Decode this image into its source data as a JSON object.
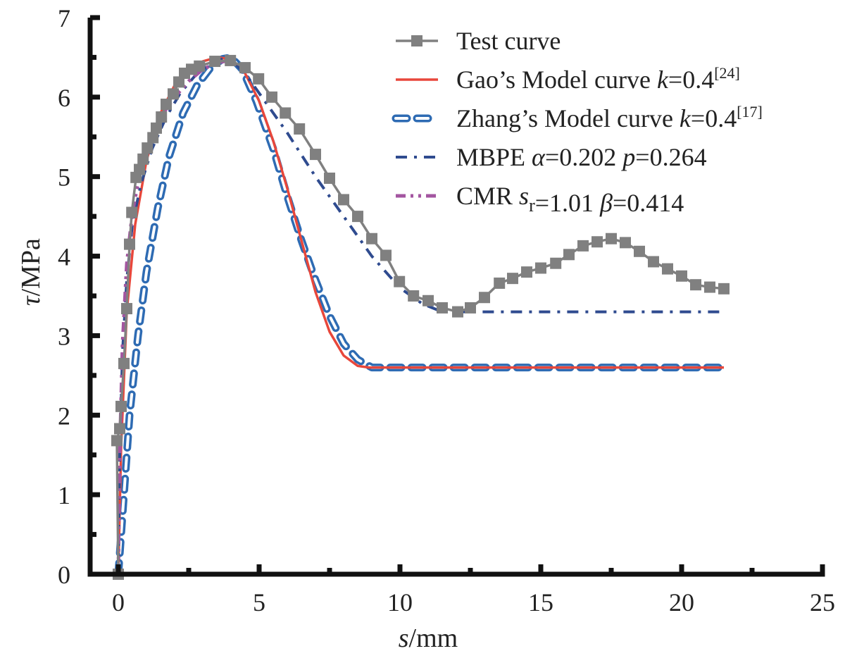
{
  "chart_data": {
    "type": "line",
    "title": "",
    "xlabel": {
      "var": "s",
      "unit": "/mm"
    },
    "ylabel": {
      "var": "τ",
      "unit": "/MPa"
    },
    "xlim": [
      -1,
      25
    ],
    "ylim": [
      0,
      7
    ],
    "xticks": [
      0,
      5,
      10,
      15,
      20,
      25
    ],
    "yticks": [
      0,
      1,
      2,
      3,
      4,
      5,
      6,
      7
    ],
    "xtick_labels": [
      "0",
      "5",
      "10",
      "15",
      "20",
      "25"
    ],
    "ytick_labels": [
      "0",
      "1",
      "2",
      "3",
      "4",
      "5",
      "6",
      "7"
    ],
    "grid": false,
    "legend_position": "top-right",
    "series": [
      {
        "name": "Test curve",
        "legend": [
          {
            "t": "Test curve"
          }
        ],
        "color": "#808080",
        "style": "line-square-markers",
        "x": [
          0,
          -0.05,
          0.05,
          0.1,
          0.2,
          0.3,
          0.4,
          0.48,
          0.63,
          0.75,
          0.88,
          1.03,
          1.23,
          1.35,
          1.53,
          1.7,
          1.95,
          2.15,
          2.35,
          2.6,
          2.88,
          3.43,
          3.98,
          4.5,
          4.98,
          5.45,
          5.93,
          6.43,
          7.0,
          7.5,
          8.0,
          8.5,
          9.0,
          9.5,
          9.98,
          10.48,
          11.0,
          11.5,
          12.05,
          12.5,
          13.0,
          13.53,
          14.0,
          14.5,
          15.0,
          15.53,
          16.0,
          16.5,
          17.0,
          17.5,
          18.0,
          18.5,
          19.0,
          19.5,
          20.0,
          20.5,
          21.0,
          21.5
        ],
        "y": [
          0,
          1.68,
          1.83,
          2.11,
          2.65,
          3.34,
          4.15,
          4.55,
          4.99,
          5.09,
          5.22,
          5.36,
          5.49,
          5.61,
          5.75,
          5.91,
          6.04,
          6.19,
          6.3,
          6.35,
          6.39,
          6.45,
          6.46,
          6.37,
          6.23,
          6.0,
          5.8,
          5.6,
          5.28,
          4.98,
          4.71,
          4.5,
          4.22,
          4.01,
          3.68,
          3.5,
          3.44,
          3.35,
          3.3,
          3.35,
          3.48,
          3.66,
          3.72,
          3.8,
          3.85,
          3.91,
          4.02,
          4.13,
          4.18,
          4.22,
          4.17,
          4.06,
          3.93,
          3.84,
          3.75,
          3.64,
          3.61,
          3.59
        ]
      },
      {
        "name": "Gao's Model curve k=0.4[24]",
        "legend": [
          {
            "t": "Gao’s Model curve "
          },
          {
            "t": "k",
            "i": true
          },
          {
            "t": "=0.4"
          },
          {
            "t": "[24]",
            "sup": true
          }
        ],
        "color": "#e8473b",
        "style": "solid",
        "x": [
          0,
          0.1,
          0.3,
          0.6,
          1.0,
          1.5,
          2.0,
          2.5,
          3.0,
          3.5,
          4.0,
          4.5,
          5.0,
          5.5,
          6.0,
          6.5,
          7.0,
          7.5,
          8.0,
          8.5,
          8.9,
          9.5,
          12,
          15,
          18,
          21.5
        ],
        "y": [
          0,
          1.6,
          3.3,
          4.4,
          5.2,
          5.8,
          6.15,
          6.35,
          6.45,
          6.5,
          6.48,
          6.3,
          5.95,
          5.45,
          4.85,
          4.2,
          3.55,
          3.05,
          2.75,
          2.62,
          2.6,
          2.6,
          2.6,
          2.6,
          2.6,
          2.6
        ]
      },
      {
        "name": "Zhang's Model curve k=0.4[17]",
        "legend": [
          {
            "t": "Zhang’s Model curve "
          },
          {
            "t": "k",
            "i": true
          },
          {
            "t": "=0.4"
          },
          {
            "t": "[17]",
            "sup": true
          }
        ],
        "color": "#2e6bb3",
        "style": "hollow-dash",
        "x": [
          0,
          0.2,
          0.4,
          0.7,
          1.0,
          1.4,
          1.8,
          2.3,
          2.8,
          3.3,
          3.7,
          4.0,
          4.4,
          4.9,
          5.5,
          6.0,
          6.5,
          7.0,
          7.5,
          8.0,
          8.5,
          9.0,
          9.5,
          12,
          15,
          18,
          21.5
        ],
        "y": [
          0,
          1.0,
          2.0,
          3.0,
          3.8,
          4.6,
          5.25,
          5.8,
          6.15,
          6.38,
          6.48,
          6.5,
          6.35,
          5.95,
          5.35,
          4.75,
          4.2,
          3.7,
          3.25,
          2.9,
          2.7,
          2.6,
          2.6,
          2.6,
          2.6,
          2.6,
          2.6
        ]
      },
      {
        "name": "MBPE α=0.202 p=0.264",
        "legend": [
          {
            "t": "MBPE "
          },
          {
            "t": "α",
            "i": true
          },
          {
            "t": "=0.202 "
          },
          {
            "t": "p",
            "i": true
          },
          {
            "t": "=0.264"
          }
        ],
        "color": "#2f4b8f",
        "style": "dash-dot",
        "x": [
          0,
          0.05,
          0.15,
          0.3,
          0.5,
          0.8,
          1.2,
          1.7,
          2.2,
          2.8,
          3.4,
          3.9,
          4.5,
          5.0,
          6.0,
          7.0,
          8.0,
          9.0,
          10.0,
          10.8,
          11.5,
          12.0,
          12.5,
          15,
          18,
          21.5
        ],
        "y": [
          0,
          1.5,
          2.8,
          3.7,
          4.4,
          4.9,
          5.35,
          5.75,
          6.05,
          6.3,
          6.45,
          6.5,
          6.3,
          6.05,
          5.55,
          5.0,
          4.5,
          4.0,
          3.6,
          3.4,
          3.3,
          3.3,
          3.3,
          3.3,
          3.3,
          3.3
        ]
      },
      {
        "name": "CMR sr=1.01 β=0.414",
        "legend": [
          {
            "t": "CMR "
          },
          {
            "t": "s",
            "i": true
          },
          {
            "t": "r",
            "sub": true
          },
          {
            "t": "=1.01 "
          },
          {
            "t": "β",
            "i": true
          },
          {
            "t": "=0.414"
          }
        ],
        "color": "#a355a0",
        "style": "dash-dot-dot",
        "x": [
          0,
          0.05,
          0.15,
          0.3,
          0.5,
          0.8,
          1.2,
          1.6,
          2.0,
          2.5,
          3.0,
          3.5,
          3.9
        ],
        "y": [
          0,
          1.5,
          2.9,
          3.9,
          4.55,
          5.1,
          5.5,
          5.8,
          6.0,
          6.2,
          6.35,
          6.43,
          6.46
        ]
      }
    ]
  }
}
